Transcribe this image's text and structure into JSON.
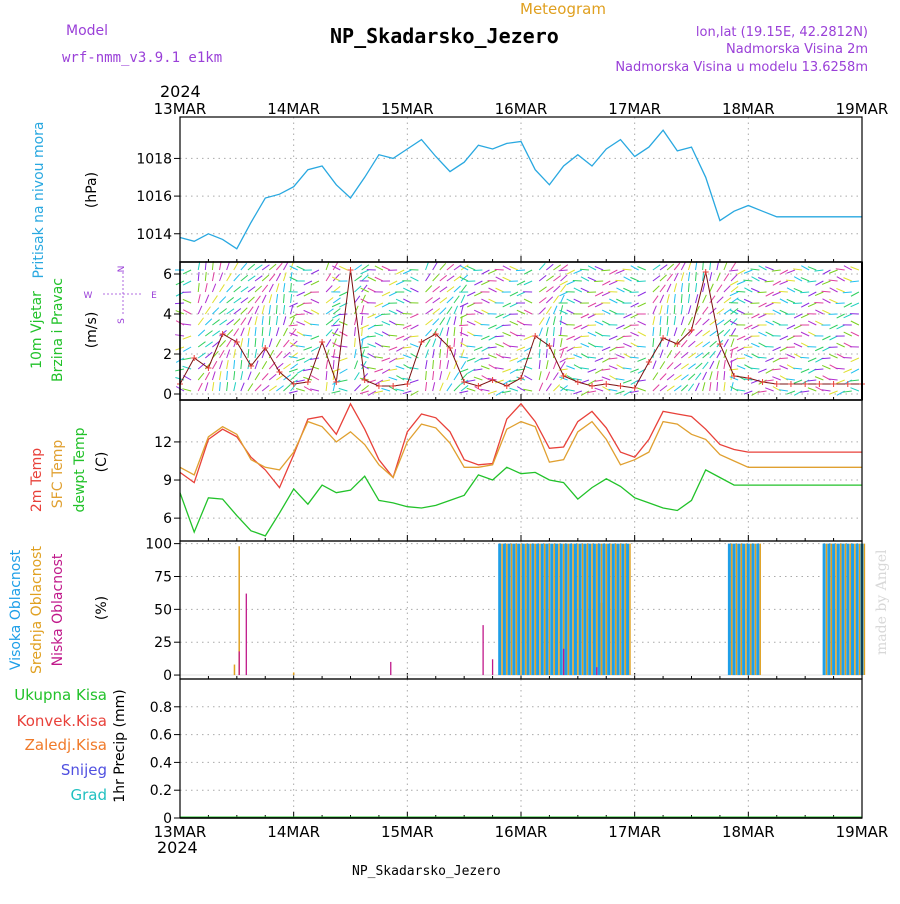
{
  "header": {
    "model_label": "Model",
    "model_name": "wrf-nmm_v3.9.1 e1km",
    "meteogram_label": "Meteogram",
    "station": "NP_Skadarsko_Jezero",
    "lonlat": "lon,lat (19.15E, 42.2812N)",
    "altitude": "Nadmorska Visina 2m",
    "model_altitude": "Nadmorska Visina u modelu 13.6258m",
    "footer_station": "NP_Skadarsko_Jezero",
    "credit": "made by Angel"
  },
  "colors": {
    "pressure": "#29a8e0",
    "temp2m": "#e8413a",
    "sfc": "#e0a030",
    "dewpt": "#22c22a",
    "high_cloud": "#1e9fe8",
    "mid_cloud": "#e0a020",
    "low_cloud": "#c0188a",
    "model": "#9a40d8",
    "rain_total": "#22c22a",
    "rain_conv": "#e8413a",
    "rain_frozen": "#f07a2a",
    "snow": "#5050e0",
    "hail": "#20c0c0"
  },
  "time_axis": {
    "year": "2024",
    "dates": [
      "13MAR",
      "14MAR",
      "15MAR",
      "16MAR",
      "17MAR",
      "18MAR",
      "19MAR"
    ]
  },
  "wind_legend": {
    "n": "N",
    "s": "S",
    "w": "W",
    "e": "E"
  },
  "chart_data": [
    {
      "id": "pressure",
      "type": "line",
      "ylabel_name": "Pritisak na nivou mora",
      "ylabel_unit": "(hPa)",
      "ylim": [
        1012.5,
        1020.2
      ],
      "yticks": [
        1014,
        1016,
        1018
      ],
      "x": [
        0,
        3,
        6,
        9,
        12,
        15,
        18,
        21,
        24,
        27,
        30,
        33,
        36,
        39,
        42,
        45,
        48,
        51,
        54,
        57,
        60,
        63,
        66,
        69,
        72,
        75,
        78,
        81,
        84,
        87,
        90,
        93,
        96,
        99,
        102,
        105,
        108,
        111,
        114,
        117,
        120,
        123,
        126,
        129,
        132,
        135,
        138,
        141,
        144
      ],
      "series": [
        {
          "values": [
            1013.8,
            1013.6,
            1014.0,
            1013.7,
            1013.2,
            1014.6,
            1015.9,
            1016.1,
            1016.5,
            1017.4,
            1017.6,
            1016.6,
            1015.9,
            1017.0,
            1018.2,
            1018.0,
            1018.5,
            1019.0,
            1018.1,
            1017.3,
            1017.8,
            1018.7,
            1018.5,
            1018.8,
            1018.9,
            1017.4,
            1016.6,
            1017.6,
            1018.2,
            1017.6,
            1018.5,
            1019.0,
            1018.1,
            1018.6,
            1019.5,
            1018.4,
            1018.6,
            1017.0,
            1014.7,
            1015.2,
            1015.5,
            1015.2,
            1014.9,
            1014.9,
            1014.9,
            1014.9,
            1014.9,
            1014.9,
            1014.9
          ]
        }
      ]
    },
    {
      "id": "wind",
      "type": "line",
      "ylabel_name": "10m Vjetar",
      "ylabel_name2": "Brzina i Pravac",
      "ylabel_unit": "(m/s)",
      "ylim": [
        -0.3,
        6.6
      ],
      "yticks": [
        0,
        2,
        4,
        6
      ],
      "x": [
        0,
        3,
        6,
        9,
        12,
        15,
        18,
        21,
        24,
        27,
        30,
        33,
        36,
        39,
        42,
        45,
        48,
        51,
        54,
        57,
        60,
        63,
        66,
        69,
        72,
        75,
        78,
        81,
        84,
        87,
        90,
        93,
        96,
        99,
        102,
        105,
        108,
        111,
        114,
        117,
        120,
        123,
        126,
        129,
        132,
        135,
        138,
        141,
        144
      ],
      "series": [
        {
          "name": "speed",
          "values": [
            0.5,
            1.8,
            1.3,
            3.0,
            2.6,
            1.4,
            2.3,
            1.1,
            0.5,
            0.6,
            2.6,
            0.6,
            6.2,
            0.7,
            0.4,
            0.4,
            0.5,
            2.6,
            3.0,
            2.3,
            0.6,
            0.4,
            0.7,
            0.4,
            0.8,
            2.9,
            2.4,
            0.9,
            0.6,
            0.4,
            0.5,
            0.4,
            0.3,
            1.6,
            2.8,
            2.5,
            3.2,
            6.1,
            2.5,
            0.9,
            0.8,
            0.6,
            0.5,
            0.5,
            0.5,
            0.5,
            0.5,
            0.5,
            0.5
          ]
        }
      ]
    },
    {
      "id": "temperature",
      "type": "line",
      "ylabel_names": [
        "2m Temp",
        "SFC Temp",
        "dewpt Temp"
      ],
      "ylabel_unit": "(C)",
      "ylim": [
        4.2,
        15.3
      ],
      "yticks": [
        6,
        9,
        12
      ],
      "x": [
        0,
        3,
        6,
        9,
        12,
        15,
        18,
        21,
        24,
        27,
        30,
        33,
        36,
        39,
        42,
        45,
        48,
        51,
        54,
        57,
        60,
        63,
        66,
        69,
        72,
        75,
        78,
        81,
        84,
        87,
        90,
        93,
        96,
        99,
        102,
        105,
        108,
        111,
        114,
        117,
        120,
        123,
        126,
        129,
        132,
        135,
        138,
        141,
        144
      ],
      "series": [
        {
          "name": "2m Temp",
          "values": [
            9.6,
            8.8,
            12.2,
            13.0,
            12.4,
            10.8,
            9.8,
            8.4,
            11.0,
            13.8,
            14.0,
            12.6,
            15.0,
            13.0,
            10.6,
            9.2,
            12.8,
            14.2,
            13.9,
            12.8,
            10.6,
            10.2,
            10.3,
            13.8,
            15.0,
            13.6,
            11.5,
            11.6,
            13.6,
            14.4,
            13.1,
            11.2,
            10.8,
            12.2,
            14.4,
            14.2,
            14.0,
            13.0,
            11.8,
            11.4,
            11.2,
            11.2,
            11.2,
            11.2,
            11.2,
            11.2,
            11.2,
            11.2,
            11.2
          ]
        },
        {
          "name": "SFC Temp",
          "values": [
            10.0,
            9.4,
            12.4,
            13.2,
            12.6,
            10.6,
            10.0,
            9.8,
            11.2,
            13.6,
            13.2,
            12.0,
            12.8,
            11.8,
            10.2,
            9.2,
            12.0,
            13.4,
            13.1,
            11.9,
            10.0,
            10.0,
            10.2,
            13.0,
            13.6,
            13.2,
            10.4,
            10.6,
            12.8,
            13.6,
            12.2,
            10.2,
            10.6,
            11.2,
            13.6,
            13.4,
            12.6,
            12.2,
            11.0,
            10.5,
            10.0,
            10.0,
            10.0,
            10.0,
            10.0,
            10.0,
            10.0,
            10.0,
            10.0
          ]
        },
        {
          "name": "dewpt Temp",
          "values": [
            8.0,
            4.9,
            7.6,
            7.5,
            6.2,
            5.0,
            4.6,
            6.4,
            8.3,
            7.1,
            8.6,
            8.0,
            8.2,
            9.3,
            7.4,
            7.2,
            6.9,
            6.8,
            7.0,
            7.4,
            7.8,
            9.4,
            9.0,
            10.0,
            9.5,
            9.6,
            9.0,
            8.8,
            7.5,
            8.4,
            9.1,
            8.5,
            7.6,
            7.2,
            6.8,
            6.6,
            7.4,
            9.8,
            9.2,
            8.6,
            8.6,
            8.6,
            8.6,
            8.6,
            8.6,
            8.6,
            8.6,
            8.6,
            8.6
          ]
        }
      ]
    },
    {
      "id": "clouds",
      "type": "bar",
      "ylabel_names": [
        "Visoka Oblacnost",
        "Srednja Oblacnost",
        "Niska Oblacnost"
      ],
      "ylabel_unit": "(%)",
      "ylim": [
        -3,
        102
      ],
      "yticks": [
        0,
        25,
        50,
        75,
        100
      ],
      "series": [
        {
          "name": "Visoka Oblacnost",
          "ranges": [
            [
              67.5,
              94.5
            ],
            [
              116,
              122
            ],
            [
              136,
              144
            ]
          ],
          "value": 100
        },
        {
          "name": "Srednja Oblacnost",
          "spikes": [
            [
              12.5,
              98
            ],
            [
              11.5,
              8
            ],
            [
              24,
              2
            ],
            [
              89,
              55
            ],
            [
              92,
              8
            ]
          ]
        },
        {
          "name": "Niska Oblacnost",
          "spikes": [
            [
              14,
              62
            ],
            [
              12.5,
              18
            ],
            [
              44.5,
              10
            ],
            [
              64,
              38
            ],
            [
              66,
              12
            ],
            [
              81,
              20
            ],
            [
              88,
              6
            ]
          ]
        }
      ]
    },
    {
      "id": "precip",
      "type": "line",
      "ylabel_names": [
        "Ukupna Kisa",
        "Konvek.Kisa",
        "Zaledj.Kisa",
        "Snijeg",
        "Grad"
      ],
      "ylabel_unit": "1hr Precip (mm)",
      "ylim": [
        0,
        1.0
      ],
      "yticks": [
        0,
        0.2,
        0.4,
        0.6,
        0.8
      ],
      "series": [
        {
          "name": "Ukupna Kisa",
          "values": [
            0,
            0
          ]
        }
      ]
    }
  ]
}
